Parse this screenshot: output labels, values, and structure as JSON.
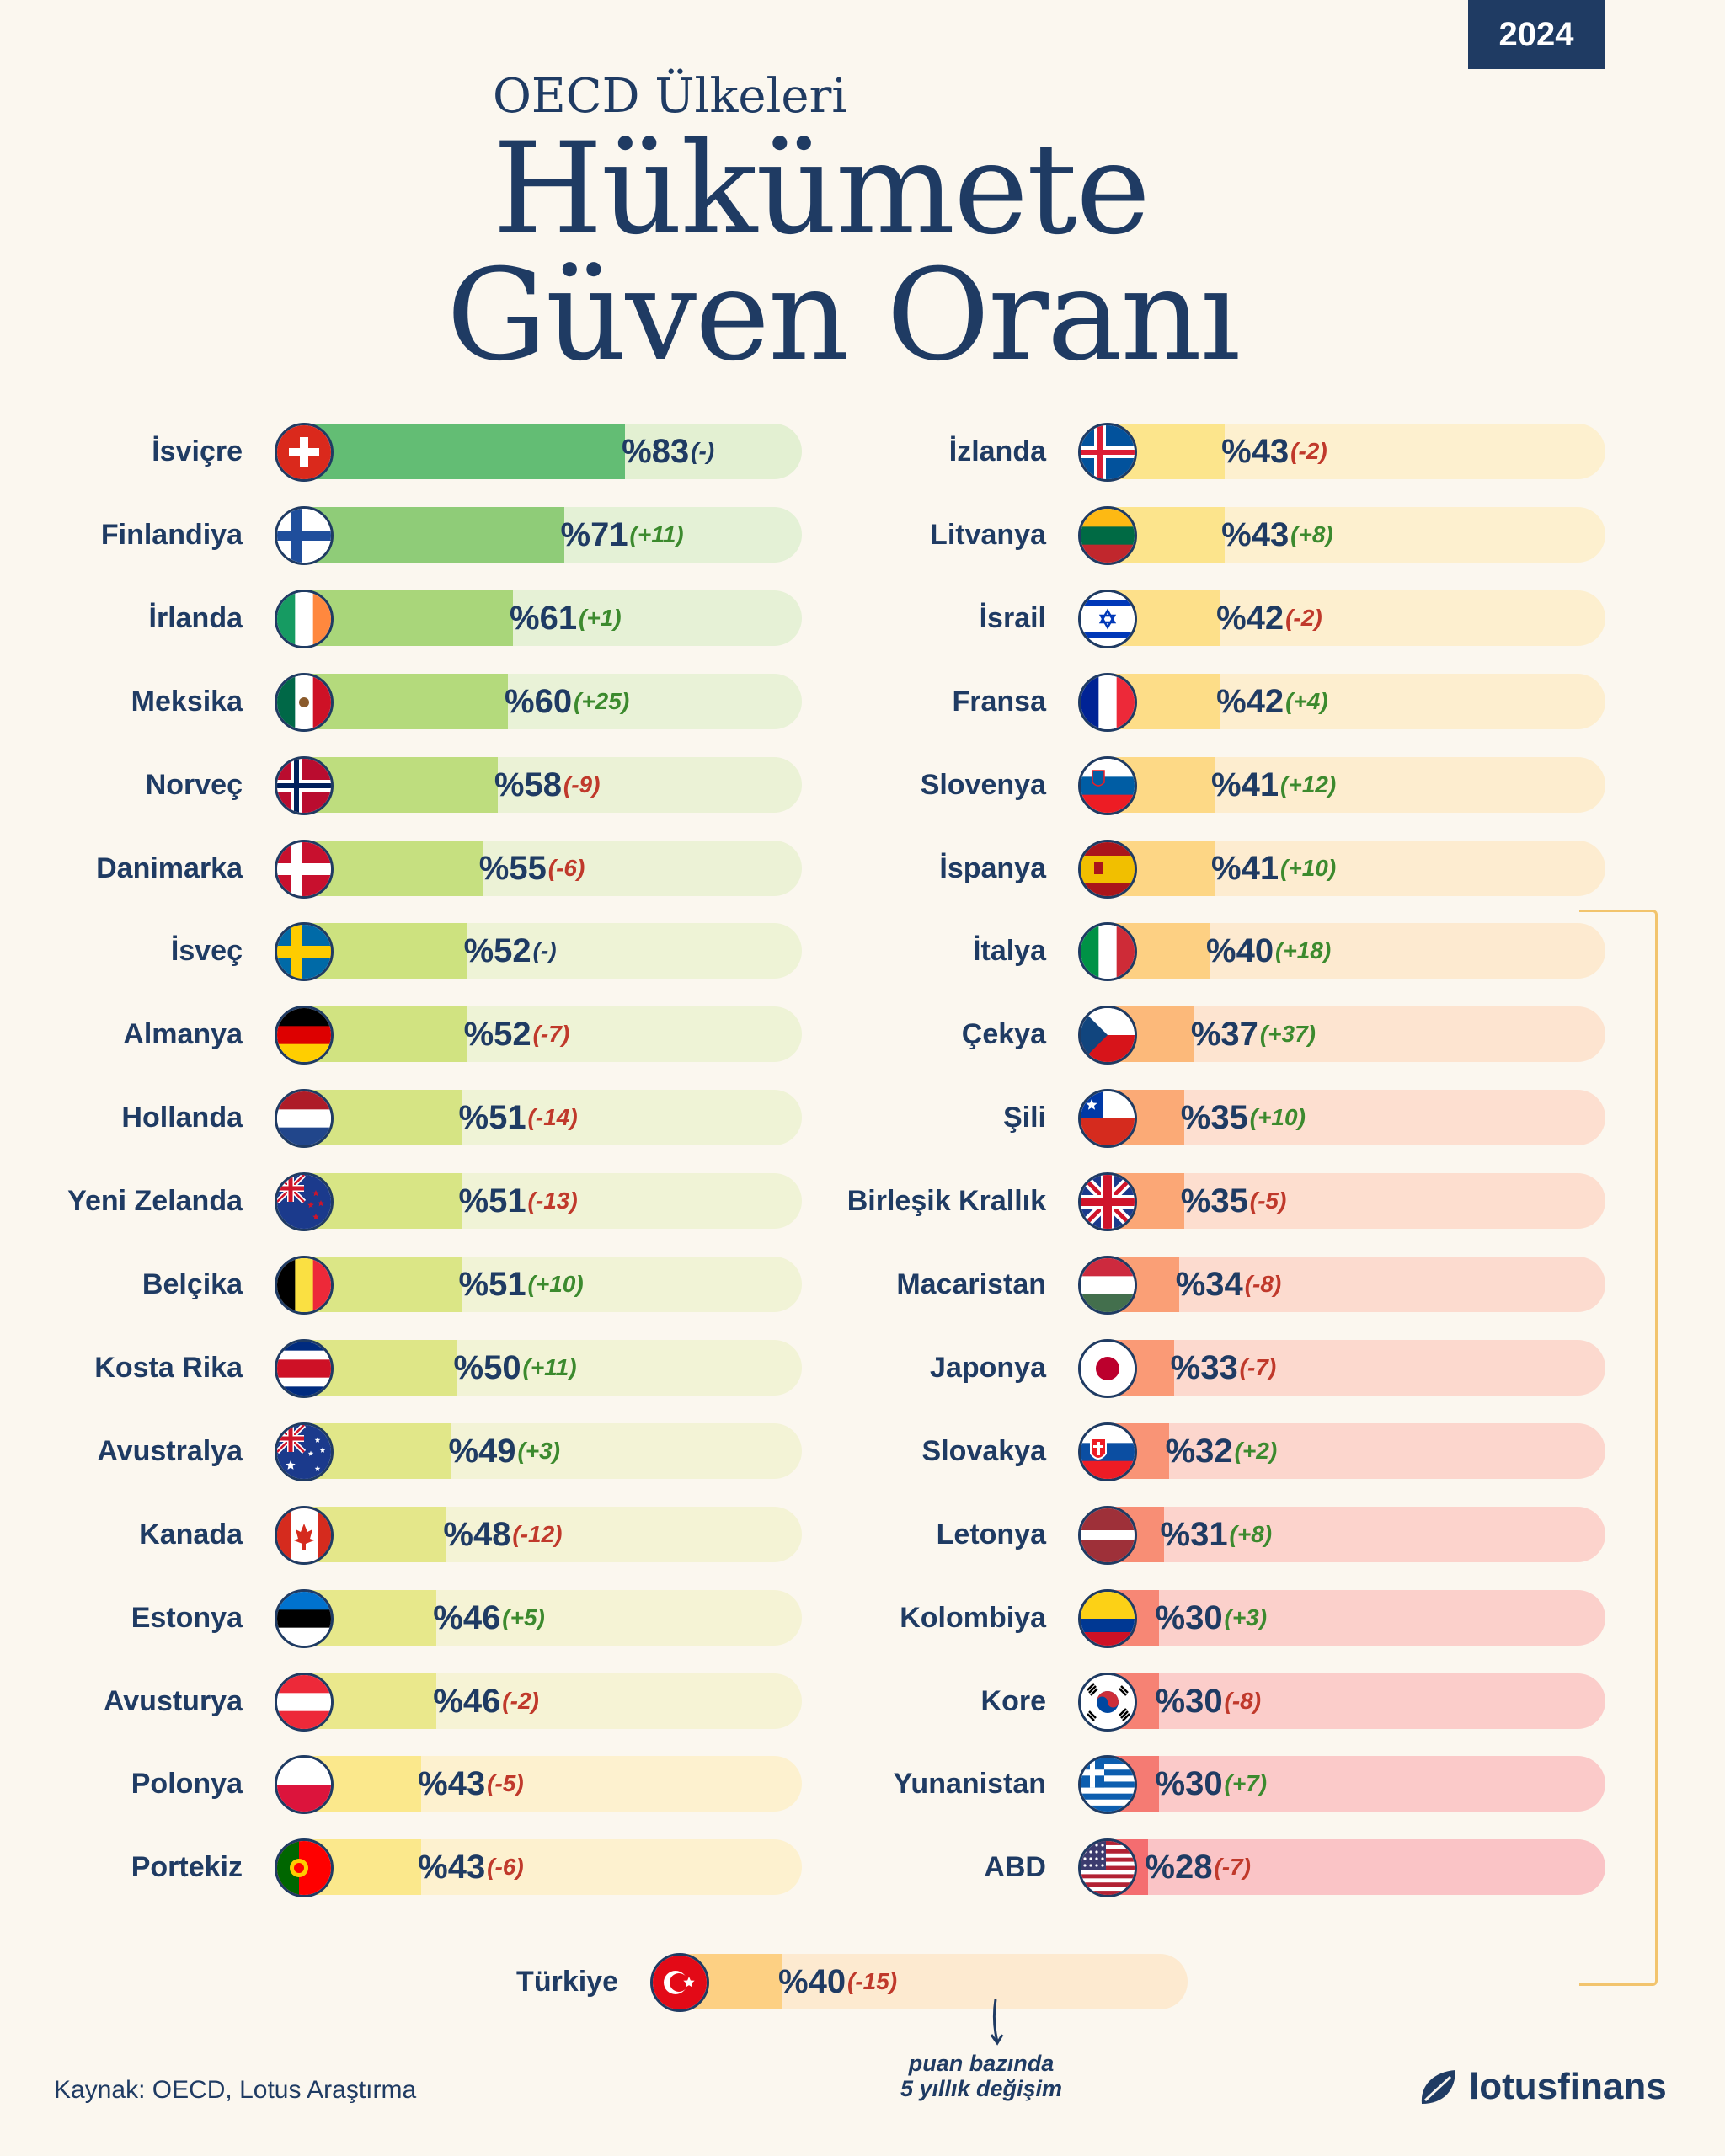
{
  "year": "2024",
  "title": {
    "line0": "OECD Ülkeleri",
    "line1": "Hükümete",
    "line2": "Güven Oranı"
  },
  "source": "Kaynak: OECD, Lotus Araştırma",
  "note": {
    "line1": "puan bazında",
    "line2": "5 yıllık değişim"
  },
  "brand": "lotusfinans",
  "chart_data": {
    "type": "bar",
    "title": "OECD Ülkeleri Hükümete Güven Oranı",
    "unit": "%",
    "max": 100,
    "left": [
      {
        "country": "İsviçre",
        "value": 83,
        "value_label": "%83",
        "change_label": "(-)",
        "flag": "ch",
        "color": "#63bd74",
        "track": "#e3f0d2"
      },
      {
        "country": "Finlandiya",
        "value": 71,
        "value_label": "%71",
        "change_label": "(+11)",
        "flag": "fi",
        "color": "#8fcc78",
        "track": "#e4f1d6"
      },
      {
        "country": "İrlanda",
        "value": 61,
        "value_label": "%61",
        "change_label": "(+1)",
        "flag": "ie",
        "color": "#a9d67a",
        "track": "#e6f1d6"
      },
      {
        "country": "Meksika",
        "value": 60,
        "value_label": "%60",
        "change_label": "(+25)",
        "flag": "mx",
        "color": "#b4da7c",
        "track": "#e9f2d7"
      },
      {
        "country": "Norveç",
        "value": 58,
        "value_label": "%58",
        "change_label": "(-9)",
        "flag": "no",
        "color": "#bedd7e",
        "track": "#ebf2d6"
      },
      {
        "country": "Danimarka",
        "value": 55,
        "value_label": "%55",
        "change_label": "(-6)",
        "flag": "dk",
        "color": "#c6e080",
        "track": "#ecf2d6"
      },
      {
        "country": "İsveç",
        "value": 52,
        "value_label": "%52",
        "change_label": "(-)",
        "flag": "se",
        "color": "#cde27f",
        "track": "#eef3d6"
      },
      {
        "country": "Almanya",
        "value": 52,
        "value_label": "%52",
        "change_label": "(-7)",
        "flag": "de",
        "color": "#d1e381",
        "track": "#eef3d6"
      },
      {
        "country": "Hollanda",
        "value": 51,
        "value_label": "%51",
        "change_label": "(-14)",
        "flag": "nl",
        "color": "#d6e484",
        "track": "#eff3d6"
      },
      {
        "country": "Yeni Zelanda",
        "value": 51,
        "value_label": "%51",
        "change_label": "(-13)",
        "flag": "nz",
        "color": "#d8e585",
        "track": "#f0f3d6"
      },
      {
        "country": "Belçika",
        "value": 51,
        "value_label": "%51",
        "change_label": "(+10)",
        "flag": "be",
        "color": "#dbe686",
        "track": "#f1f3d6"
      },
      {
        "country": "Kosta Rika",
        "value": 50,
        "value_label": "%50",
        "change_label": "(+11)",
        "flag": "cr",
        "color": "#dee687",
        "track": "#f2f3d6"
      },
      {
        "country": "Avustralya",
        "value": 49,
        "value_label": "%49",
        "change_label": "(+3)",
        "flag": "au",
        "color": "#e1e789",
        "track": "#f3f3d6"
      },
      {
        "country": "Kanada",
        "value": 48,
        "value_label": "%48",
        "change_label": "(-12)",
        "flag": "ca",
        "color": "#e4e78a",
        "track": "#f4f3d5"
      },
      {
        "country": "Estonya",
        "value": 46,
        "value_label": "%46",
        "change_label": "(+5)",
        "flag": "ee",
        "color": "#e7e88b",
        "track": "#f5f3d5"
      },
      {
        "country": "Avusturya",
        "value": 46,
        "value_label": "%46",
        "change_label": "(-2)",
        "flag": "at",
        "color": "#eae88c",
        "track": "#f6f3d5"
      },
      {
        "country": "Polonya",
        "value": 43,
        "value_label": "%43",
        "change_label": "(-5)",
        "flag": "pl",
        "color": "#fbe88c",
        "track": "#fdf1cf"
      },
      {
        "country": "Portekiz",
        "value": 43,
        "value_label": "%43",
        "change_label": "(-6)",
        "flag": "pt",
        "color": "#fbe88c",
        "track": "#fdf1cf"
      }
    ],
    "right": [
      {
        "country": "İzlanda",
        "value": 43,
        "value_label": "%43",
        "change_label": "(-2)",
        "flag": "is",
        "color": "#fce58c",
        "track": "#fdf0cf"
      },
      {
        "country": "Litvanya",
        "value": 43,
        "value_label": "%43",
        "change_label": "(+8)",
        "flag": "lt",
        "color": "#fce48c",
        "track": "#fdf0cf"
      },
      {
        "country": "İsrail",
        "value": 42,
        "value_label": "%42",
        "change_label": "(-2)",
        "flag": "il",
        "color": "#fde08a",
        "track": "#fdefcf"
      },
      {
        "country": "Fransa",
        "value": 42,
        "value_label": "%42",
        "change_label": "(+4)",
        "flag": "fr",
        "color": "#fddd88",
        "track": "#fdeecf"
      },
      {
        "country": "Slovenya",
        "value": 41,
        "value_label": "%41",
        "change_label": "(+12)",
        "flag": "si",
        "color": "#fdd986",
        "track": "#fdedcf"
      },
      {
        "country": "İspanya",
        "value": 41,
        "value_label": "%41",
        "change_label": "(+10)",
        "flag": "es",
        "color": "#fdd685",
        "track": "#fdecd0"
      },
      {
        "country": "İtalya",
        "value": 40,
        "value_label": "%40",
        "change_label": "(+18)",
        "flag": "it",
        "color": "#fdd083",
        "track": "#fdead0"
      },
      {
        "country": "Çekya",
        "value": 37,
        "value_label": "%37",
        "change_label": "(+37)",
        "flag": "cz",
        "color": "#fcb97a",
        "track": "#fde4d0"
      },
      {
        "country": "Şili",
        "value": 35,
        "value_label": "%35",
        "change_label": "(+10)",
        "flag": "cl",
        "color": "#fbaa76",
        "track": "#fddfd0"
      },
      {
        "country": "Birleşik Krallık",
        "value": 35,
        "value_label": "%35",
        "change_label": "(-5)",
        "flag": "gb",
        "color": "#fba776",
        "track": "#fddecf"
      },
      {
        "country": "Macaristan",
        "value": 34,
        "value_label": "%34",
        "change_label": "(-8)",
        "flag": "hu",
        "color": "#fa9f76",
        "track": "#fcdbcf"
      },
      {
        "country": "Japonya",
        "value": 33,
        "value_label": "%33",
        "change_label": "(-7)",
        "flag": "jp",
        "color": "#fa9a76",
        "track": "#fcd9ce"
      },
      {
        "country": "Slovakya",
        "value": 32,
        "value_label": "%32",
        "change_label": "(+2)",
        "flag": "sk",
        "color": "#f99476",
        "track": "#fcd6cd"
      },
      {
        "country": "Letonya",
        "value": 31,
        "value_label": "%31",
        "change_label": "(+8)",
        "flag": "lv",
        "color": "#f88e75",
        "track": "#fcd3cc"
      },
      {
        "country": "Kolombiya",
        "value": 30,
        "value_label": "%30",
        "change_label": "(+3)",
        "flag": "co",
        "color": "#f78775",
        "track": "#fbd0cb"
      },
      {
        "country": "Kore",
        "value": 30,
        "value_label": "%30",
        "change_label": "(-8)",
        "flag": "kr",
        "color": "#f68274",
        "track": "#fbcdca"
      },
      {
        "country": "Yunanistan",
        "value": 30,
        "value_label": "%30",
        "change_label": "(+7)",
        "flag": "gr",
        "color": "#f57b73",
        "track": "#fbcac9"
      },
      {
        "country": "ABD",
        "value": 28,
        "value_label": "%28",
        "change_label": "(-7)",
        "flag": "us",
        "color": "#f46d70",
        "track": "#fac4c6"
      }
    ],
    "highlight": {
      "country": "Türkiye",
      "value": 40,
      "value_label": "%40",
      "change_label": "(-15)",
      "flag": "tr",
      "color": "#fdd083",
      "track": "#fdead0"
    }
  }
}
